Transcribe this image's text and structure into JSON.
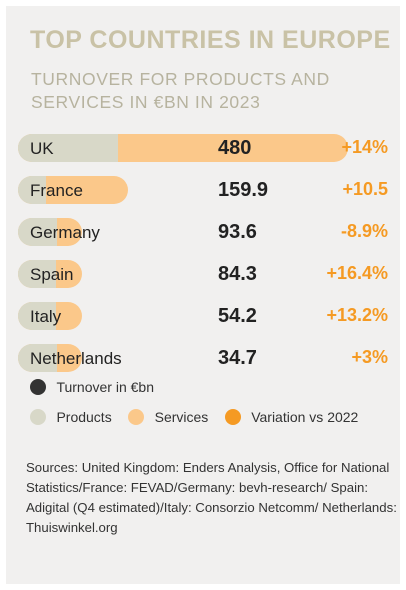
{
  "header": {
    "title": "TOP COUNTRIES IN EUROPE",
    "subtitle": "TURNOVER FOR PRODUCTS AND SERVICES IN €BN IN 2023"
  },
  "colors": {
    "products": "#d8d8c8",
    "services": "#fbc88a",
    "variation": "#f59a23",
    "turnover": "#222222"
  },
  "chart_data": {
    "type": "bar",
    "title": "TOP COUNTRIES IN EUROPE",
    "subtitle": "TURNOVER FOR PRODUCTS AND SERVICES IN €BN IN 2023",
    "categories": [
      "UK",
      "France",
      "Germany",
      "Spain",
      "Italy",
      "Netherlands"
    ],
    "turnover": [
      480,
      159.9,
      93.6,
      84.3,
      54.2,
      34.7
    ],
    "turnover_labels": [
      "480",
      "159.9",
      "93.6",
      "84.3",
      "54.2",
      "34.7"
    ],
    "products": [
      145,
      40,
      56,
      50,
      32,
      21
    ],
    "services": [
      335,
      119.9,
      37.6,
      34.3,
      22.2,
      13.7
    ],
    "variation_labels": [
      "+14%",
      "+10.5",
      "-8.9%",
      "+16.4%",
      "+13.2%",
      "+3%"
    ],
    "xlim": [
      0,
      480
    ]
  },
  "legend": {
    "turnover": "Turnover in €bn",
    "products": "Products",
    "services": "Services",
    "variation": "Variation vs 2022"
  },
  "sources": "Sources: United Kingdom: Enders Analysis, Office for National Statistics/France: FEVAD/Germany: bevh-research/ Spain: Adigital (Q4 estimated)/Italy: Consorzio Netcomm/ Netherlands: Thuiswinkel.org"
}
